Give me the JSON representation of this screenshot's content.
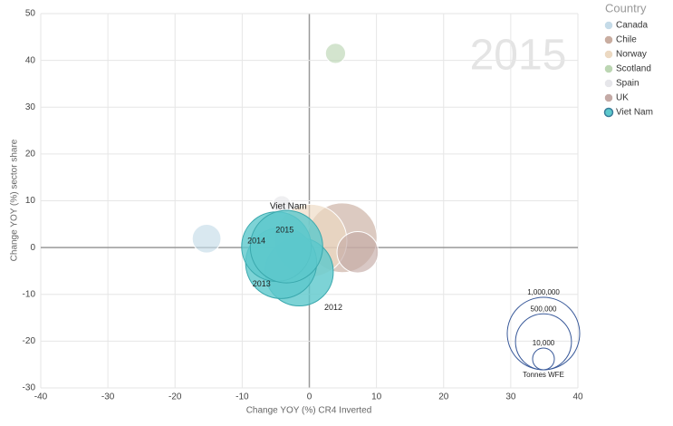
{
  "chart_data": {
    "type": "bubble",
    "play_axis_value": "2015",
    "xlabel": "Change YOY (%) CR4 Inverted",
    "ylabel": "Change YOY (%) sector share",
    "xlim": [
      -40,
      40
    ],
    "ylim": [
      -30,
      50
    ],
    "xticks": [
      -40,
      -30,
      -20,
      -10,
      0,
      10,
      20,
      30,
      40
    ],
    "yticks": [
      -30,
      -20,
      -10,
      0,
      10,
      20,
      30,
      40,
      50
    ],
    "grid": true,
    "legend_title": "Country",
    "legend_position": "right",
    "series": [
      {
        "name": "Canada",
        "color": "#c5dbe8",
        "x": [
          -15.3
        ],
        "y": [
          1.9
        ],
        "sizes": [
          50000
        ]
      },
      {
        "name": "Chile",
        "color": "#c9ada0",
        "x": [
          4.9
        ],
        "y": [
          2.1
        ],
        "sizes": [
          900000
        ]
      },
      {
        "name": "Norway",
        "color": "#ecd9c2",
        "x": [
          0.2
        ],
        "y": [
          1.5
        ],
        "sizes": [
          1000000
        ]
      },
      {
        "name": "Scotland",
        "color": "#bcd6b3",
        "x": [
          3.9
        ],
        "y": [
          41.5
        ],
        "sizes": [
          5000
        ]
      },
      {
        "name": "Spain",
        "color": "#e6e6ea",
        "x": [
          -4.1
        ],
        "y": [
          9.1
        ],
        "sizes": [
          2000
        ]
      },
      {
        "name": "UK",
        "color": "#c4aaa6",
        "x": [
          7.2
        ],
        "y": [
          -1.0
        ],
        "sizes": [
          200000
        ]
      },
      {
        "name": "Viet Nam",
        "color": "#5cc8cc",
        "highlight": true,
        "x": [
          -1.5,
          -4.2,
          -4.9,
          -3.4
        ],
        "y": [
          -5.2,
          -3.3,
          0.2,
          0.2
        ],
        "sizes": [
          850000,
          950000,
          900000,
          1000000
        ],
        "point_labels": [
          "2012",
          "2013",
          "2014",
          "2015"
        ]
      }
    ],
    "size_legend": {
      "title": "Tonnes WFE",
      "color": "#3a5a9a",
      "values": [
        {
          "value": 1000000,
          "label": "1,000,000"
        },
        {
          "value": 500000,
          "label": "500,000"
        },
        {
          "value": 10000,
          "label": "10,000"
        }
      ]
    }
  }
}
